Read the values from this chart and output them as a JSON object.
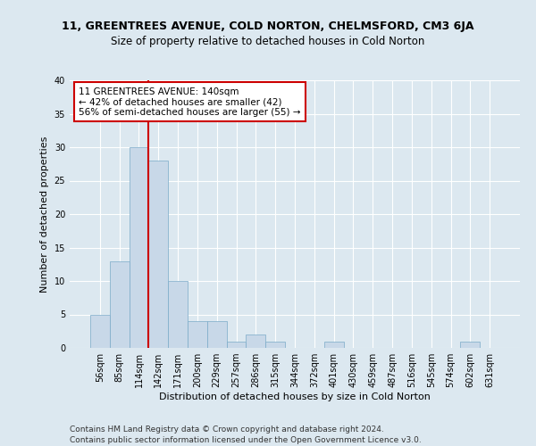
{
  "title1": "11, GREENTREES AVENUE, COLD NORTON, CHELMSFORD, CM3 6JA",
  "title2": "Size of property relative to detached houses in Cold Norton",
  "xlabel": "Distribution of detached houses by size in Cold Norton",
  "ylabel": "Number of detached properties",
  "footer1": "Contains HM Land Registry data © Crown copyright and database right 2024.",
  "footer2": "Contains public sector information licensed under the Open Government Licence v3.0.",
  "annotation_line1": "11 GREENTREES AVENUE: 140sqm",
  "annotation_line2": "← 42% of detached houses are smaller (42)",
  "annotation_line3": "56% of semi-detached houses are larger (55) →",
  "bin_labels": [
    "56sqm",
    "85sqm",
    "114sqm",
    "142sqm",
    "171sqm",
    "200sqm",
    "229sqm",
    "257sqm",
    "286sqm",
    "315sqm",
    "344sqm",
    "372sqm",
    "401sqm",
    "430sqm",
    "459sqm",
    "487sqm",
    "516sqm",
    "545sqm",
    "574sqm",
    "602sqm",
    "631sqm"
  ],
  "bar_values": [
    5,
    13,
    30,
    28,
    10,
    4,
    4,
    1,
    2,
    1,
    0,
    0,
    1,
    0,
    0,
    0,
    0,
    0,
    0,
    1,
    0
  ],
  "bar_color": "#c8d8e8",
  "bar_edge_color": "#7aaac8",
  "vline_color": "#cc0000",
  "annotation_box_color": "#cc0000",
  "bg_color": "#dce8f0",
  "ylim": [
    0,
    40
  ],
  "yticks": [
    0,
    5,
    10,
    15,
    20,
    25,
    30,
    35,
    40
  ],
  "title1_fontsize": 9,
  "title2_fontsize": 8.5,
  "ylabel_fontsize": 8,
  "xlabel_fontsize": 8,
  "tick_fontsize": 7,
  "footer_fontsize": 6.5,
  "annotation_fontsize": 7.5
}
